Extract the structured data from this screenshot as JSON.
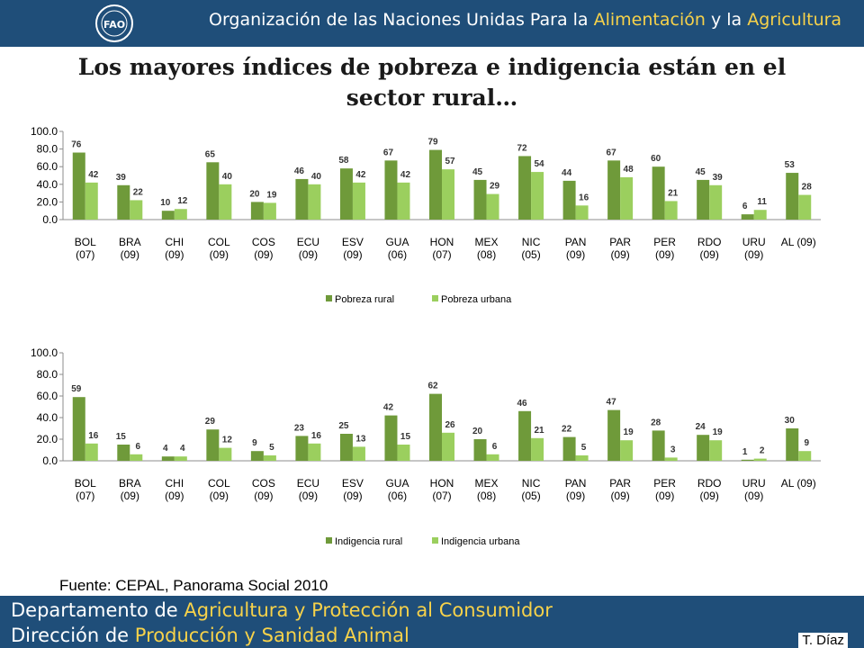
{
  "header": {
    "logo_text": "FAO FIAT PANIS",
    "org_prefix": "Organización de las Naciones Unidas Para la",
    "org_highlight1": "Alimentación",
    "org_mid": "y la",
    "org_highlight2": "Agricultura"
  },
  "title": "Los mayores índices de pobreza e indigencia están en el sector rural…",
  "source": "Fuente: CEPAL, Panorama Social 2010",
  "footer": {
    "dept_prefix": "Departamento de",
    "dept_highlight": "Agricultura y Protección al Consumidor",
    "dir_prefix": "Dirección de",
    "dir_highlight": "Producción y Sanidad Animal",
    "author": "T. Díaz"
  },
  "colors": {
    "header_bg": "#1f4e79",
    "highlight": "#f7d24a",
    "series_dark": "#6f9a3a",
    "series_light": "#9bcf5e"
  },
  "chart_data": [
    {
      "type": "bar",
      "categories": [
        "BOL\n(07)",
        "BRA\n(09)",
        "CHI\n(09)",
        "COL\n(09)",
        "COS\n(09)",
        "ECU\n(09)",
        "ESV\n(09)",
        "GUA\n(06)",
        "HON\n(07)",
        "MEX\n(08)",
        "NIC\n(05)",
        "PAN\n(09)",
        "PAR\n(09)",
        "PER\n(09)",
        "RDO\n(09)",
        "URU\n(09)",
        "AL (09)"
      ],
      "series": [
        {
          "name": "Pobreza rural",
          "values": [
            76,
            39,
            10,
            65,
            20,
            46,
            58,
            67,
            79,
            45,
            72,
            44,
            67,
            60,
            45,
            6,
            53
          ]
        },
        {
          "name": "Pobreza urbana",
          "values": [
            42,
            22,
            12,
            40,
            19,
            40,
            42,
            42,
            57,
            29,
            54,
            16,
            48,
            21,
            39,
            11,
            28
          ]
        }
      ],
      "yticks": [
        "0.0",
        "20.0",
        "40.0",
        "60.0",
        "80.0",
        "100.0"
      ],
      "ylim": [
        0,
        100
      ],
      "legend": "bottom",
      "grid": false
    },
    {
      "type": "bar",
      "categories": [
        "BOL\n(07)",
        "BRA\n(09)",
        "CHI\n(09)",
        "COL\n(09)",
        "COS\n(09)",
        "ECU\n(09)",
        "ESV\n(09)",
        "GUA\n(06)",
        "HON\n(07)",
        "MEX\n(08)",
        "NIC\n(05)",
        "PAN\n(09)",
        "PAR\n(09)",
        "PER\n(09)",
        "RDO\n(09)",
        "URU\n(09)",
        "AL (09)"
      ],
      "series": [
        {
          "name": "Indigencia rural",
          "values": [
            59,
            15,
            4,
            29,
            9,
            23,
            25,
            42,
            62,
            20,
            46,
            22,
            47,
            28,
            24,
            1,
            30
          ]
        },
        {
          "name": "Indigencia urbana",
          "values": [
            16,
            6,
            4,
            12,
            5,
            16,
            13,
            15,
            26,
            6,
            21,
            5,
            19,
            3,
            19,
            2,
            9
          ]
        }
      ],
      "yticks": [
        "0.0",
        "20.0",
        "40.0",
        "60.0",
        "80.0",
        "100.0"
      ],
      "ylim": [
        0,
        100
      ],
      "legend": "bottom",
      "grid": false
    }
  ]
}
